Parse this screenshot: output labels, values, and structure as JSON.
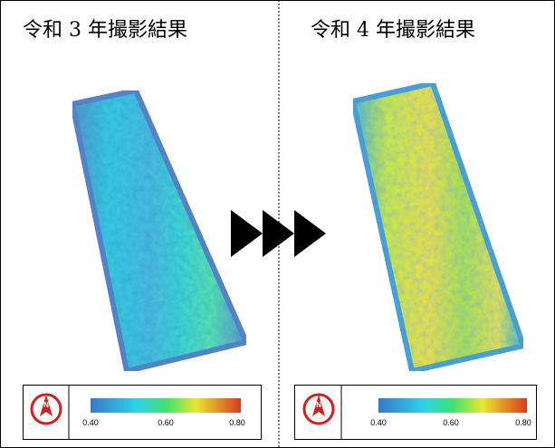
{
  "panels": [
    {
      "title": "令和 3 年撮影結果",
      "legend": {
        "north": "N",
        "ticks": [
          "0.40",
          "0.60",
          "0.80"
        ]
      }
    },
    {
      "title": "令和 4 年撮影結果",
      "legend": {
        "north": "N",
        "ticks": [
          "0.40",
          "0.60",
          "0.80"
        ]
      }
    }
  ]
}
